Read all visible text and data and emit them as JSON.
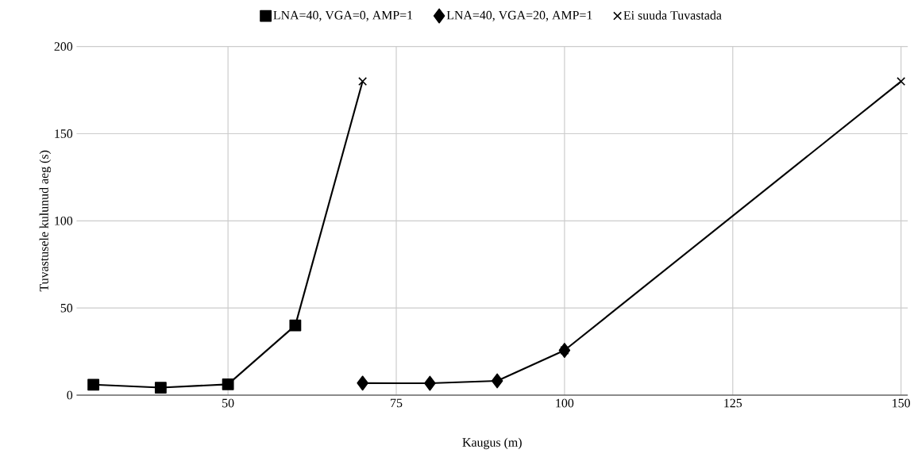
{
  "chart_data": {
    "type": "line",
    "xlabel": "Kaugus (m)",
    "ylabel": "Tuvastusele kulunud aeg (s)",
    "xlim": [
      27.5,
      151
    ],
    "ylim": [
      0,
      200
    ],
    "xticks": [
      50,
      75,
      100,
      125,
      150
    ],
    "yticks": [
      0,
      50,
      100,
      150,
      200
    ],
    "grid": true,
    "legend": "top",
    "series": [
      {
        "name": "LNA=40, VGA=0, AMP=1",
        "color": "#000000",
        "marker": "square",
        "x": [
          30,
          40,
          50,
          60
        ],
        "values": [
          6,
          4.3,
          6.2,
          40
        ]
      },
      {
        "name": "LNA=40, VGA=20, AMP=1",
        "color": "#000000",
        "marker": "diamond",
        "x": [
          70,
          80,
          90,
          100
        ],
        "values": [
          6.9,
          6.8,
          8.2,
          25.7
        ]
      },
      {
        "type": "line",
        "color": "#000000",
        "marker": "none",
        "x": [
          60,
          70
        ],
        "values": [
          40,
          180
        ]
      },
      {
        "type": "line",
        "color": "#000000",
        "marker": "none",
        "x": [
          100,
          150
        ],
        "values": [
          25.7,
          180
        ]
      },
      {
        "name": "Ei suuda Tuvastada",
        "type": "scatter",
        "color": "#000000",
        "marker": "cross",
        "x": [
          70,
          100,
          150
        ],
        "values": [
          180,
          25.7,
          180
        ]
      }
    ]
  }
}
